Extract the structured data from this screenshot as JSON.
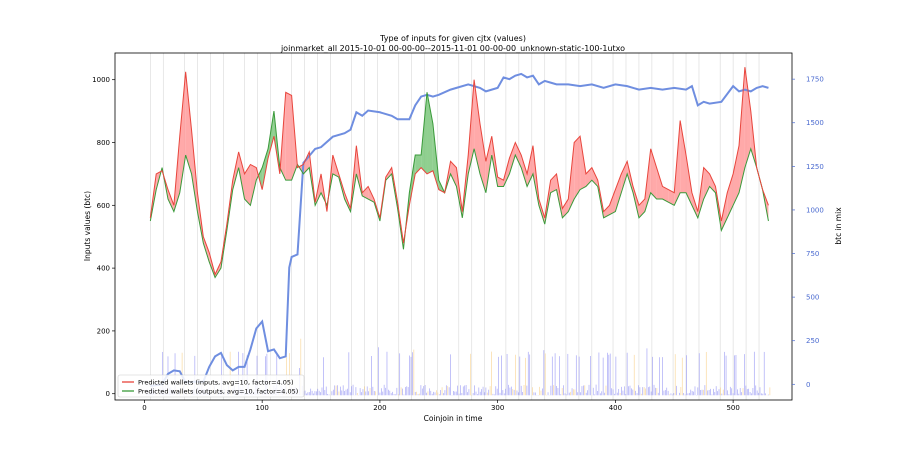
{
  "chart_data": {
    "type": "line",
    "title": "Type of inputs for given cjtx (values)",
    "subtitle": "joinmarket_all 2015-10-01 00-00-00--2015-11-01 00-00-00_unknown-static-100-1utxo",
    "xlabel": "Coinjoin in time",
    "ylabel": "Inputs values (btc)",
    "ylabel_right": "btc in mix",
    "xlim": [
      -25,
      550
    ],
    "ylim": [
      -20,
      1085
    ],
    "ylim_right": [
      -90,
      1900
    ],
    "x_ticks": [
      0,
      100,
      200,
      300,
      400,
      500
    ],
    "y_ticks": [
      0,
      200,
      400,
      600,
      800,
      1000
    ],
    "y_ticks_right": [
      0,
      250,
      500,
      750,
      1000,
      1250,
      1500,
      1750
    ],
    "legend_position": "lower-left",
    "colors": {
      "inputs": "#e8453c",
      "outputs": "#3a9a3a",
      "inputs_fill": "#ff9a9a",
      "outputs_fill": "#7cc77c",
      "btc_in_mix": "#6f8ee0",
      "right_axis": "#4a6ad0",
      "bars_blue": "#6f6ff0",
      "bars_orange": "#f5c060",
      "vlines": "#d8d8d8"
    },
    "legend": [
      {
        "label": "Predicted wallets (inputs, avg=10, factor=4.05)",
        "color": "#e8453c"
      },
      {
        "label": "Predicted wallets (outputs, avg=10, factor=4.05)",
        "color": "#3a9a3a"
      }
    ],
    "series": [
      {
        "name": "Predicted wallets (inputs, avg=10, factor=4.05)",
        "axis": "left",
        "x": [
          5,
          10,
          15,
          20,
          25,
          30,
          35,
          40,
          45,
          50,
          55,
          60,
          65,
          70,
          75,
          80,
          85,
          90,
          95,
          100,
          105,
          110,
          115,
          120,
          125,
          130,
          135,
          140,
          145,
          150,
          155,
          160,
          165,
          170,
          175,
          180,
          185,
          190,
          195,
          200,
          205,
          210,
          215,
          220,
          225,
          230,
          235,
          240,
          245,
          250,
          255,
          260,
          265,
          270,
          275,
          280,
          285,
          290,
          295,
          300,
          305,
          310,
          315,
          320,
          325,
          330,
          335,
          340,
          345,
          350,
          355,
          360,
          365,
          370,
          375,
          380,
          385,
          390,
          395,
          400,
          405,
          410,
          415,
          420,
          425,
          430,
          435,
          440,
          445,
          450,
          455,
          460,
          465,
          470,
          475,
          480,
          485,
          490,
          495,
          500,
          505,
          510,
          515,
          520,
          525,
          530
        ],
        "values": [
          560,
          700,
          710,
          650,
          600,
          820,
          1025,
          840,
          640,
          500,
          450,
          380,
          420,
          540,
          680,
          770,
          700,
          730,
          720,
          650,
          750,
          820,
          700,
          960,
          950,
          720,
          730,
          770,
          610,
          700,
          580,
          760,
          700,
          640,
          590,
          790,
          640,
          660,
          620,
          560,
          690,
          720,
          610,
          480,
          600,
          700,
          720,
          700,
          710,
          650,
          640,
          740,
          720,
          580,
          760,
          1000,
          860,
          740,
          820,
          690,
          680,
          750,
          800,
          760,
          700,
          790,
          620,
          560,
          680,
          700,
          590,
          620,
          800,
          820,
          700,
          720,
          680,
          580,
          600,
          650,
          700,
          740,
          660,
          600,
          620,
          780,
          720,
          660,
          650,
          640,
          870,
          760,
          640,
          580,
          720,
          700,
          660,
          550,
          640,
          700,
          790,
          1040,
          900,
          720,
          650,
          600
        ]
      },
      {
        "name": "Predicted wallets (outputs, avg=10, factor=4.05)",
        "axis": "left",
        "x": [
          5,
          10,
          15,
          20,
          25,
          30,
          35,
          40,
          45,
          50,
          55,
          60,
          65,
          70,
          75,
          80,
          85,
          90,
          95,
          100,
          105,
          110,
          115,
          120,
          125,
          130,
          135,
          140,
          145,
          150,
          155,
          160,
          165,
          170,
          175,
          180,
          185,
          190,
          195,
          200,
          205,
          210,
          215,
          220,
          225,
          230,
          235,
          240,
          245,
          250,
          255,
          260,
          265,
          270,
          275,
          280,
          285,
          290,
          295,
          300,
          305,
          310,
          315,
          320,
          325,
          330,
          335,
          340,
          345,
          350,
          355,
          360,
          365,
          370,
          375,
          380,
          385,
          390,
          395,
          400,
          405,
          410,
          415,
          420,
          425,
          430,
          435,
          440,
          445,
          450,
          455,
          460,
          465,
          470,
          475,
          480,
          485,
          490,
          495,
          500,
          505,
          510,
          515,
          520,
          525,
          530
        ],
        "values": [
          550,
          650,
          720,
          620,
          580,
          640,
          760,
          700,
          580,
          480,
          420,
          370,
          400,
          520,
          650,
          720,
          620,
          600,
          680,
          720,
          780,
          900,
          720,
          680,
          680,
          730,
          700,
          720,
          600,
          640,
          600,
          700,
          690,
          620,
          580,
          700,
          630,
          620,
          610,
          550,
          680,
          700,
          590,
          460,
          640,
          760,
          760,
          960,
          860,
          680,
          640,
          700,
          660,
          560,
          700,
          780,
          700,
          640,
          760,
          660,
          660,
          700,
          760,
          720,
          660,
          700,
          600,
          540,
          640,
          650,
          560,
          580,
          620,
          650,
          660,
          680,
          660,
          560,
          570,
          580,
          640,
          700,
          640,
          560,
          580,
          640,
          620,
          620,
          610,
          600,
          640,
          640,
          600,
          560,
          620,
          660,
          640,
          520,
          560,
          600,
          640,
          720,
          780,
          720,
          650,
          550
        ]
      },
      {
        "name": "btc in mix",
        "axis": "right",
        "x": [
          5,
          15,
          20,
          25,
          30,
          35,
          40,
          50,
          55,
          60,
          65,
          70,
          75,
          80,
          85,
          90,
          95,
          100,
          105,
          110,
          115,
          120,
          123,
          125,
          130,
          135,
          140,
          145,
          150,
          160,
          170,
          175,
          180,
          185,
          190,
          200,
          210,
          215,
          225,
          230,
          235,
          240,
          245,
          250,
          260,
          265,
          275,
          285,
          290,
          300,
          305,
          310,
          315,
          320,
          325,
          330,
          335,
          340,
          345,
          350,
          360,
          370,
          380,
          390,
          400,
          410,
          420,
          430,
          440,
          450,
          460,
          465,
          470,
          475,
          480,
          490,
          500,
          505,
          510,
          515,
          520,
          525,
          530
        ],
        "values": [
          -10,
          0,
          60,
          80,
          75,
          10,
          15,
          15,
          100,
          160,
          180,
          110,
          80,
          100,
          100,
          200,
          320,
          360,
          190,
          200,
          150,
          160,
          670,
          730,
          745,
          1270,
          1310,
          1350,
          1360,
          1420,
          1440,
          1460,
          1560,
          1540,
          1570,
          1560,
          1540,
          1520,
          1520,
          1600,
          1650,
          1660,
          1650,
          1660,
          1690,
          1700,
          1720,
          1700,
          1680,
          1700,
          1760,
          1750,
          1770,
          1780,
          1760,
          1770,
          1720,
          1740,
          1730,
          1720,
          1720,
          1710,
          1720,
          1700,
          1720,
          1710,
          1690,
          1700,
          1690,
          1700,
          1690,
          1710,
          1600,
          1620,
          1610,
          1620,
          1710,
          1680,
          1690,
          1680,
          1700,
          1710,
          1700
        ]
      }
    ],
    "annotation_bars": {
      "description": "dense vertical bars near bottom (blue and orange)"
    }
  }
}
